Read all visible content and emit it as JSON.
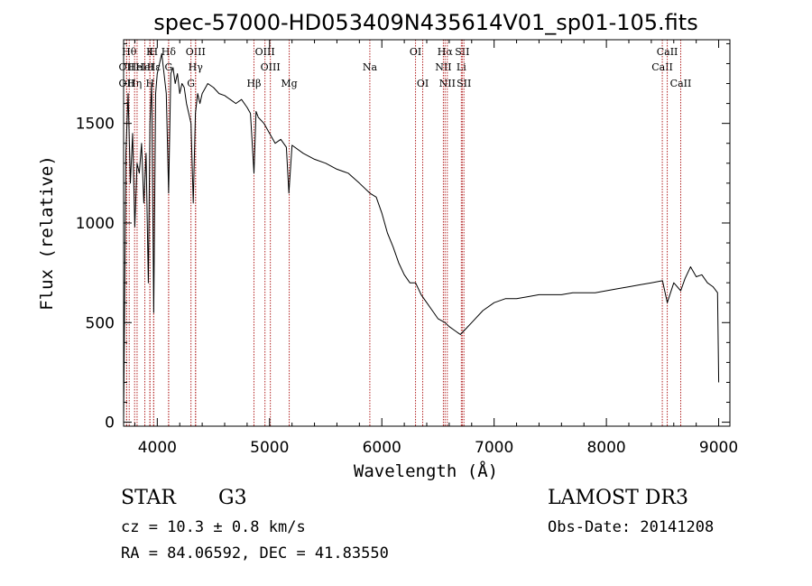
{
  "chart_data": {
    "type": "line",
    "title": "spec-57000-HD053409N435614V01_sp01-105.fits",
    "xlabel": "Wavelength (Å)",
    "ylabel": "Flux (relative)",
    "xlim": [
      3700,
      9100
    ],
    "ylim": [
      -20,
      1920
    ],
    "xticks": [
      4000,
      5000,
      6000,
      7000,
      8000,
      9000
    ],
    "yticks": [
      0,
      500,
      1000,
      1500
    ],
    "grid": false,
    "series": [
      {
        "x": [
          3700,
          3720,
          3740,
          3760,
          3780,
          3800,
          3820,
          3840,
          3860,
          3880,
          3900,
          3920,
          3935,
          3950,
          3968,
          3985,
          4000,
          4020,
          4040,
          4060,
          4080,
          4101,
          4120,
          4140,
          4160,
          4180,
          4200,
          4220,
          4240,
          4260,
          4280,
          4300,
          4320,
          4340,
          4360,
          4380,
          4400,
          4450,
          4500,
          4550,
          4600,
          4650,
          4700,
          4750,
          4800,
          4830,
          4861,
          4880,
          4900,
          4950,
          5000,
          5050,
          5100,
          5150,
          5172,
          5200,
          5300,
          5400,
          5500,
          5600,
          5700,
          5800,
          5893,
          5950,
          6000,
          6050,
          6100,
          6150,
          6200,
          6250,
          6300,
          6350,
          6400,
          6450,
          6500,
          6563,
          6600,
          6650,
          6700,
          6750,
          6800,
          6900,
          7000,
          7100,
          7200,
          7300,
          7400,
          7500,
          7600,
          7700,
          7800,
          7900,
          8000,
          8100,
          8200,
          8300,
          8400,
          8500,
          8542,
          8600,
          8662,
          8700,
          8750,
          8800,
          8850,
          8900,
          8950,
          8990,
          9000
        ],
        "y": [
          0,
          1350,
          1650,
          1200,
          1450,
          980,
          1300,
          1250,
          1400,
          1100,
          1350,
          700,
          1500,
          1700,
          550,
          1650,
          1750,
          1800,
          1850,
          1750,
          1650,
          1150,
          1750,
          1780,
          1700,
          1750,
          1650,
          1700,
          1680,
          1600,
          1550,
          1500,
          1100,
          1550,
          1650,
          1600,
          1650,
          1700,
          1680,
          1650,
          1640,
          1620,
          1600,
          1620,
          1580,
          1550,
          1250,
          1560,
          1530,
          1500,
          1450,
          1400,
          1420,
          1380,
          1150,
          1390,
          1350,
          1320,
          1300,
          1270,
          1250,
          1200,
          1150,
          1130,
          1050,
          950,
          880,
          800,
          740,
          700,
          700,
          640,
          600,
          560,
          520,
          500,
          480,
          460,
          440,
          470,
          500,
          560,
          600,
          620,
          620,
          630,
          640,
          640,
          640,
          650,
          650,
          650,
          660,
          670,
          680,
          690,
          700,
          710,
          600,
          700,
          660,
          720,
          780,
          730,
          740,
          700,
          680,
          650,
          200
        ]
      }
    ],
    "lines": [
      {
        "x": 3750,
        "name": "Hθ",
        "row": 1
      },
      {
        "x": 3727,
        "name": "OII",
        "row": 2
      },
      {
        "x": 3727,
        "name": "OII",
        "row": 3
      },
      {
        "x": 3798,
        "name": "Hη",
        "row": 3
      },
      {
        "x": 3820,
        "name": "HeI",
        "row": 2
      },
      {
        "x": 3889,
        "name": "HeI",
        "row": 2
      },
      {
        "x": 3934,
        "name": "K",
        "row": 1
      },
      {
        "x": 3935,
        "name": "H",
        "row": 3
      },
      {
        "x": 3968,
        "name": "H",
        "row": 1
      },
      {
        "x": 3968,
        "name": "Hε",
        "row": 2
      },
      {
        "x": 4101,
        "name": "Hδ",
        "row": 1
      },
      {
        "x": 4101,
        "name": "G",
        "row": 2
      },
      {
        "x": 4300,
        "name": "G",
        "row": 3
      },
      {
        "x": 4341,
        "name": "OIII",
        "row": 1
      },
      {
        "x": 4341,
        "name": "Hγ",
        "row": 2
      },
      {
        "x": 4861,
        "name": "Hβ",
        "row": 3
      },
      {
        "x": 4959,
        "name": "OIII",
        "row": 1
      },
      {
        "x": 5007,
        "name": "OIII",
        "row": 2
      },
      {
        "x": 5175,
        "name": "Mg",
        "row": 3
      },
      {
        "x": 5893,
        "name": "Na",
        "row": 2
      },
      {
        "x": 6300,
        "name": "OI",
        "row": 1
      },
      {
        "x": 6364,
        "name": "OI",
        "row": 3
      },
      {
        "x": 6548,
        "name": "NII",
        "row": 2
      },
      {
        "x": 6563,
        "name": "Hα",
        "row": 1
      },
      {
        "x": 6583,
        "name": "NII",
        "row": 3
      },
      {
        "x": 6708,
        "name": "Li",
        "row": 2
      },
      {
        "x": 6716,
        "name": "SII",
        "row": 1
      },
      {
        "x": 6731,
        "name": "SII",
        "row": 3
      },
      {
        "x": 8498,
        "name": "CaII",
        "row": 2
      },
      {
        "x": 8542,
        "name": "CaII",
        "row": 1
      },
      {
        "x": 8662,
        "name": "CaII",
        "row": 3
      }
    ]
  },
  "info": {
    "class": "STAR",
    "subclass": "G3",
    "survey": "LAMOST DR3",
    "cz": "cz = 10.3 ± 0.8 km/s",
    "obsdate": "Obs-Date: 20141208",
    "coords": "RA =  84.06592, DEC =  41.83550"
  },
  "colors": {
    "line_marker": "#b22222",
    "spectrum": "#000000"
  }
}
